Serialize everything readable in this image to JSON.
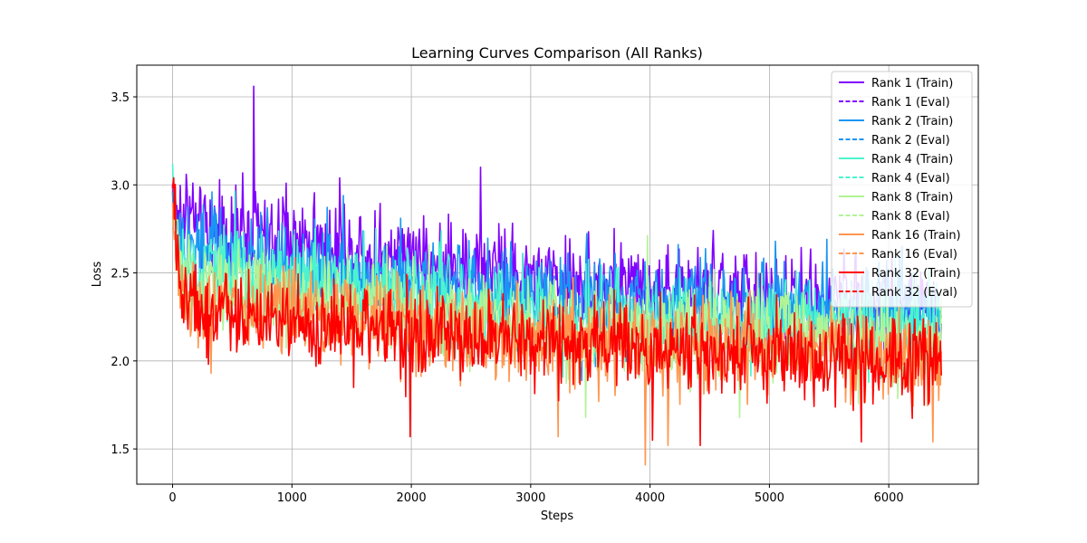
{
  "chart_data": {
    "type": "line",
    "title": "Learning Curves Comparison (All Ranks)",
    "xlabel": "Steps",
    "ylabel": "Loss",
    "xlim": [
      -300,
      6750
    ],
    "ylim": [
      1.3,
      3.68
    ],
    "xticks": [
      0,
      1000,
      2000,
      3000,
      4000,
      5000,
      6000
    ],
    "yticks": [
      1.5,
      2.0,
      2.5,
      3.0,
      3.5
    ],
    "xtick_labels": [
      "0",
      "1000",
      "2000",
      "3000",
      "4000",
      "5000",
      "6000"
    ],
    "ytick_labels": [
      "1.5",
      "2.0",
      "2.5",
      "3.0",
      "3.5"
    ],
    "grid": true,
    "legend_position": "top-right",
    "max_step": 6440,
    "series": [
      {
        "name": "Rank 1 (Train)",
        "color": "#8000ff",
        "style": "solid",
        "kind": "train",
        "start": 2.8,
        "mid": 2.45,
        "end": 2.3,
        "noise": 0.3,
        "low": 1.7,
        "high": 3.56,
        "spikes": [
          [
            680,
            3.56
          ],
          [
            2580,
            3.1
          ],
          [
            1400,
            3.04
          ],
          [
            170,
            3.01
          ]
        ]
      },
      {
        "name": "Rank 1 (Eval)",
        "color": "#8000ff",
        "style": "dashed",
        "kind": "eval"
      },
      {
        "name": "Rank 2 (Train)",
        "color": "#1996f3",
        "style": "solid",
        "kind": "train",
        "start": 2.65,
        "mid": 2.35,
        "end": 2.25,
        "noise": 0.3,
        "low": 1.65,
        "high": 2.96,
        "spikes": [
          [
            330,
            2.96
          ],
          [
            1430,
            2.94
          ],
          [
            5050,
            2.68
          ]
        ]
      },
      {
        "name": "Rank 2 (Eval)",
        "color": "#1996f3",
        "style": "dashed",
        "kind": "eval"
      },
      {
        "name": "Rank 4 (Train)",
        "color": "#4df3ce",
        "style": "solid",
        "kind": "train",
        "start": 2.55,
        "mid": 2.25,
        "end": 2.2,
        "noise": 0.3,
        "low": 1.65,
        "high": 3.12,
        "spikes": [
          [
            0,
            3.12
          ],
          [
            2250,
            2.74
          ]
        ]
      },
      {
        "name": "Rank 4 (Eval)",
        "color": "#4df3ce",
        "style": "dashed",
        "kind": "eval"
      },
      {
        "name": "Rank 8 (Train)",
        "color": "#b2f396",
        "style": "solid",
        "kind": "train",
        "start": 2.45,
        "mid": 2.18,
        "end": 2.1,
        "noise": 0.3,
        "low": 1.65,
        "high": 2.8,
        "spikes": [
          [
            3460,
            1.68
          ],
          [
            4750,
            1.68
          ]
        ]
      },
      {
        "name": "Rank 8 (Eval)",
        "color": "#b2f396",
        "style": "dashed",
        "kind": "eval"
      },
      {
        "name": "Rank 16 (Train)",
        "color": "#ff964f",
        "style": "solid",
        "kind": "train",
        "start": 2.35,
        "mid": 2.12,
        "end": 2.02,
        "noise": 0.3,
        "low": 1.41,
        "high": 3.05,
        "spikes": [
          [
            3960,
            1.41
          ],
          [
            4150,
            1.52
          ],
          [
            3230,
            1.57
          ],
          [
            6370,
            1.54
          ]
        ]
      },
      {
        "name": "Rank 16 (Eval)",
        "color": "#ff964f",
        "style": "dashed",
        "kind": "eval"
      },
      {
        "name": "Rank 32 (Train)",
        "color": "#ff0000",
        "style": "solid",
        "kind": "train",
        "start": 2.3,
        "mid": 2.1,
        "end": 2.0,
        "noise": 0.28,
        "low": 1.52,
        "high": 3.04,
        "spikes": [
          [
            10,
            3.04
          ],
          [
            1990,
            1.57
          ],
          [
            4420,
            1.52
          ],
          [
            5770,
            1.54
          ],
          [
            4020,
            1.55
          ]
        ]
      },
      {
        "name": "Rank 32 (Eval)",
        "color": "#ff0000",
        "style": "dashed",
        "kind": "eval"
      }
    ]
  }
}
